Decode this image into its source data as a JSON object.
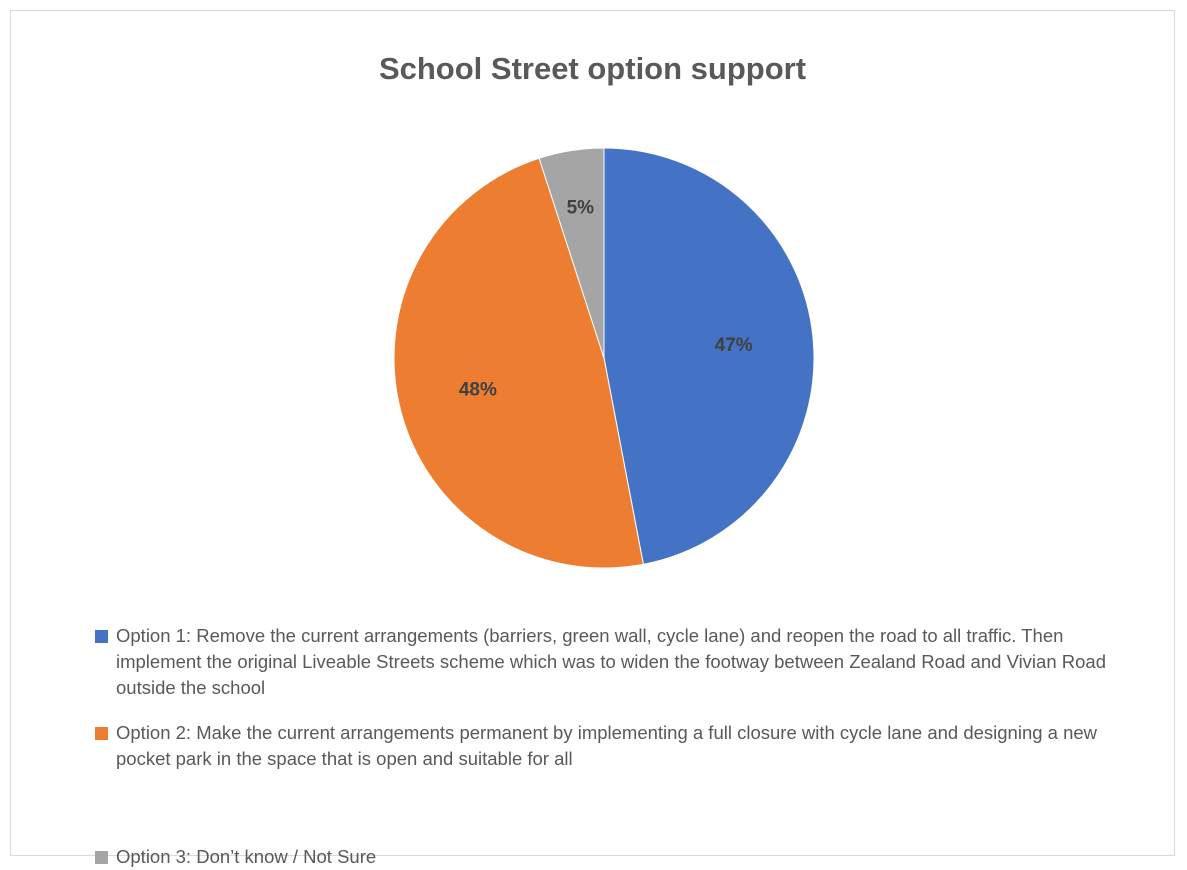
{
  "chart_data": {
    "type": "pie",
    "title": "School Street option support",
    "categories": [
      "Option 1: Remove the current arrangements (barriers, green wall, cycle lane) and reopen the road to all traffic. Then implement the original Liveable Streets scheme which was to widen the footway between Zealand Road and Vivian Road outside the school",
      "Option 2: Make the current arrangements permanent by implementing a full closure with cycle lane and designing a new pocket park in the space that is open and suitable for all",
      "Option 3: Don’t know / Not Sure"
    ],
    "values": [
      47,
      48,
      5
    ],
    "labels": [
      "47%",
      "48%",
      "5%"
    ],
    "colors": [
      "#4472C4",
      "#ED7D31",
      "#A5A5A5"
    ],
    "legend_position": "bottom",
    "start_angle_deg": 0,
    "direction": "clockwise"
  }
}
